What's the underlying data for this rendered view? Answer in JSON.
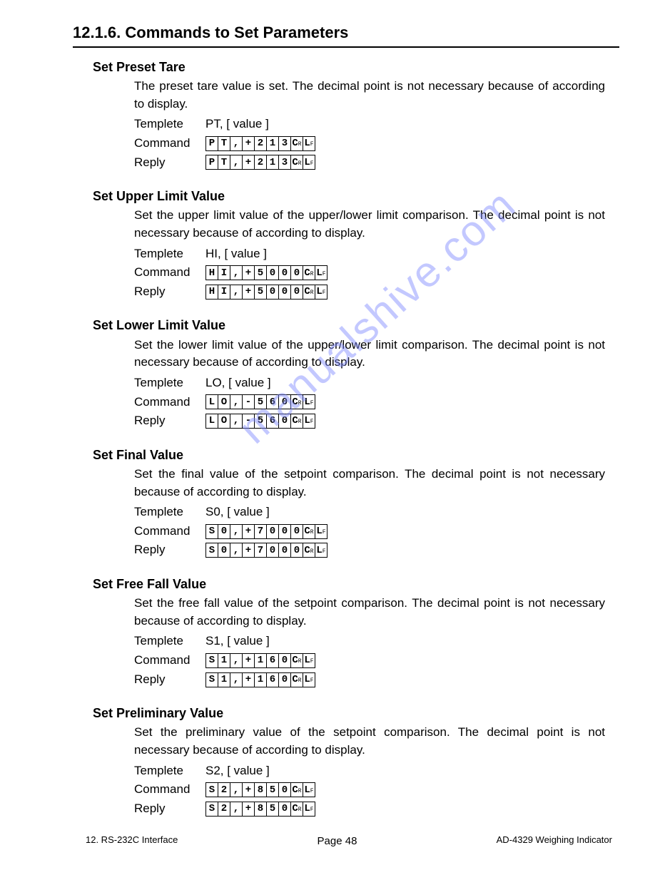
{
  "heading": "12.1.6. Commands to Set Parameters",
  "row_labels": {
    "templete": "Templete",
    "command": "Command",
    "reply": "Reply"
  },
  "sections": [
    {
      "title": "Set Preset Tare",
      "desc": "The preset tare value is set. The decimal point is not necessary because of according to display.",
      "templete": "PT, [ value ]",
      "cmd": [
        "P",
        "T",
        ",",
        "+",
        "2",
        "1",
        "3",
        "CR",
        "LF"
      ],
      "reply": [
        "P",
        "T",
        ",",
        "+",
        "2",
        "1",
        "3",
        "CR",
        "LF"
      ]
    },
    {
      "title": "Set Upper Limit Value",
      "desc": "Set the upper limit value of the upper/lower limit comparison. The decimal point is not necessary because of according to display.",
      "templete": "HI, [ value ]",
      "cmd": [
        "H",
        "I",
        ",",
        "+",
        "5",
        "0",
        "0",
        "0",
        "CR",
        "LF"
      ],
      "reply": [
        "H",
        "I",
        ",",
        "+",
        "5",
        "0",
        "0",
        "0",
        "CR",
        "LF"
      ]
    },
    {
      "title": "Set Lower Limit Value",
      "desc": "Set the lower limit value of the upper/lower limit comparison. The decimal point is not necessary because of according to display.",
      "templete": "LO, [ value ]",
      "cmd": [
        "L",
        "O",
        ",",
        "-",
        "5",
        "6",
        "0",
        "CR",
        "LF"
      ],
      "reply": [
        "L",
        "O",
        ",",
        "-",
        "5",
        "6",
        "0",
        "CR",
        "LF"
      ]
    },
    {
      "title": "Set Final Value",
      "desc": "Set the final value of the setpoint comparison. The decimal point is not necessary because of according to display.",
      "templete": "S0, [ value ]",
      "cmd": [
        "S",
        "0",
        ",",
        "+",
        "7",
        "0",
        "0",
        "0",
        "CR",
        "LF"
      ],
      "reply": [
        "S",
        "0",
        ",",
        "+",
        "7",
        "0",
        "0",
        "0",
        "CR",
        "LF"
      ]
    },
    {
      "title": "Set Free Fall Value",
      "desc": "Set the free fall value of the setpoint comparison. The decimal point is not necessary because of according to display.",
      "templete": "S1, [ value ]",
      "cmd": [
        "S",
        "1",
        ",",
        "+",
        "1",
        "6",
        "0",
        "CR",
        "LF"
      ],
      "reply": [
        "S",
        "1",
        ",",
        "+",
        "1",
        "6",
        "0",
        "CR",
        "LF"
      ]
    },
    {
      "title": "Set Preliminary Value",
      "desc": "Set the preliminary value of the setpoint comparison. The decimal point is not necessary because of according to display.",
      "templete": "S2, [ value ]",
      "cmd": [
        "S",
        "2",
        ",",
        "+",
        "8",
        "5",
        "0",
        "CR",
        "LF"
      ],
      "reply": [
        "S",
        "2",
        ",",
        "+",
        "8",
        "5",
        "0",
        "CR",
        "LF"
      ]
    }
  ],
  "footer": {
    "left": "12. RS-232C Interface",
    "center": "Page 48",
    "right": "AD-4329 Weighing Indicator"
  },
  "watermark": "manualshive.com"
}
